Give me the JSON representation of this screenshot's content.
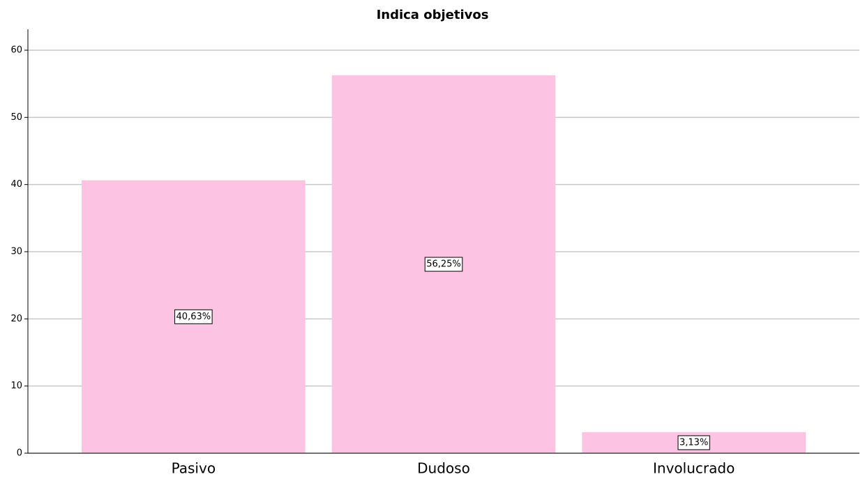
{
  "chart_data": {
    "type": "bar",
    "title": "Indica objetivos",
    "categories": [
      "Pasivo",
      "Dudoso",
      "Involucrado"
    ],
    "values": [
      40.63,
      56.25,
      3.13
    ],
    "value_labels": [
      "40,63%",
      "56,25%",
      "3,13%"
    ],
    "color": "#fcc3e2",
    "ylim": [
      0,
      60
    ],
    "yticks": [
      0,
      10,
      20,
      30,
      40,
      50,
      60
    ],
    "grid": true
  }
}
